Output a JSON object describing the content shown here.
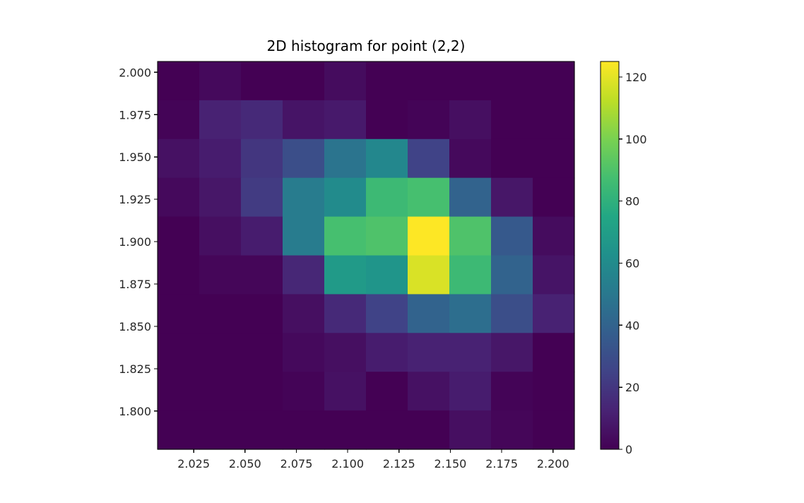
{
  "chart_data": {
    "type": "heatmap",
    "title": "2D histogram for point (2,2)",
    "xlabel": "",
    "ylabel": "",
    "x_edges": [
      2.0074,
      2.0277,
      2.048,
      2.0683,
      2.0886,
      2.1089,
      2.1292,
      2.1495,
      2.1698,
      2.1901,
      2.2104
    ],
    "y_edges": [
      1.7774,
      1.8003,
      1.8232,
      1.8461,
      1.869,
      1.8919,
      1.9148,
      1.9377,
      1.9606,
      1.9835,
      2.0064
    ],
    "xlim": [
      2.0074,
      2.2104
    ],
    "ylim": [
      1.7774,
      2.0064
    ],
    "x_ticks": [
      2.025,
      2.05,
      2.075,
      2.1,
      2.125,
      2.15,
      2.175,
      2.2
    ],
    "x_tick_labels": [
      "2.025",
      "2.050",
      "2.075",
      "2.100",
      "2.125",
      "2.150",
      "2.175",
      "2.200"
    ],
    "y_ticks": [
      2.0,
      1.975,
      1.95,
      1.925,
      1.9,
      1.875,
      1.85,
      1.825,
      1.8
    ],
    "y_tick_labels": [
      "2.000",
      "1.975",
      "1.950",
      "1.925",
      "1.900",
      "1.875",
      "1.850",
      "1.825",
      "1.800"
    ],
    "counts_top_to_bottom": [
      [
        0,
        3,
        0,
        0,
        4,
        0,
        0,
        0,
        0,
        0
      ],
      [
        1,
        12,
        15,
        7,
        9,
        0,
        1,
        5,
        0,
        0
      ],
      [
        6,
        10,
        20,
        30,
        48,
        58,
        25,
        3,
        0,
        0
      ],
      [
        3,
        8,
        22,
        52,
        60,
        85,
        88,
        40,
        8,
        0
      ],
      [
        0,
        5,
        10,
        52,
        88,
        90,
        125,
        90,
        35,
        4
      ],
      [
        0,
        2,
        2,
        14,
        68,
        65,
        118,
        85,
        40,
        7
      ],
      [
        0,
        0,
        0,
        5,
        15,
        25,
        40,
        45,
        30,
        12
      ],
      [
        0,
        0,
        0,
        3,
        5,
        10,
        12,
        12,
        8,
        0
      ],
      [
        0,
        0,
        0,
        1,
        6,
        0,
        6,
        10,
        1,
        0
      ],
      [
        0,
        0,
        0,
        0,
        0,
        0,
        0,
        5,
        2,
        0
      ]
    ],
    "colormap": "viridis",
    "colorbar": {
      "min": 0,
      "max": 125,
      "ticks": [
        0,
        20,
        40,
        60,
        80,
        100,
        120
      ],
      "tick_labels": [
        "0",
        "20",
        "40",
        "60",
        "80",
        "100",
        "120"
      ]
    },
    "grid": false,
    "legend": "none"
  }
}
